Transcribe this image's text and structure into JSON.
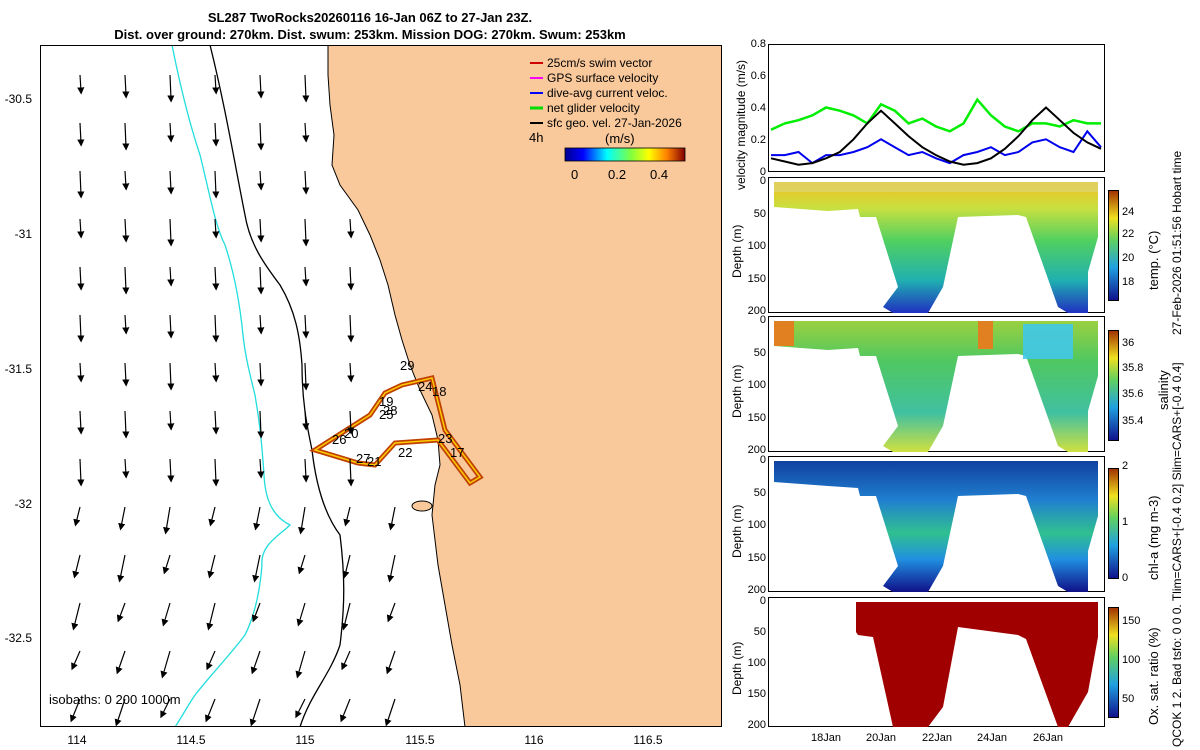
{
  "title_line1": "SL287 TwoRocks20260116 16-Jan 06Z to 27-Jan 23Z.",
  "title_line2": "Dist. over ground: 270km. Dist. swum: 253km. Mission DOG: 270km. Swum: 253km",
  "side_note": "27-Feb-2026 01:51:56 Hobart time",
  "side_note2": "QCOK 1  2. Bad tsfo: 0  0  0. Tlim=CARS+[-0.4 0.2] Slim=CARS+[-0.4 0.4]",
  "map": {
    "yticks": [
      "-30.5",
      "-31",
      "-31.5",
      "-32",
      "-32.5"
    ],
    "xticks": [
      "114",
      "114.5",
      "115",
      "115.5",
      "116",
      "116.5"
    ],
    "isobath_label": "isobaths: 0   200  1000m",
    "legend": [
      {
        "label": "25cm/s swim vector",
        "color": "#d00000"
      },
      {
        "label": "GPS surface velocity",
        "color": "#ff00ff"
      },
      {
        "label": "dive-avg current veloc.",
        "color": "#0000ff"
      },
      {
        "label": "net glider velocity",
        "color": "#00dd00"
      },
      {
        "label": "sfc geo. vel. 27-Jan-2026",
        "color": "#000000"
      }
    ],
    "legend_4h": "4h",
    "colorbar_unit": "(m/s)",
    "colorbar_ticks": [
      "0",
      "0.2",
      "0.4"
    ],
    "day_labels": [
      "29",
      "24",
      "18",
      "19",
      "28",
      "25",
      "20",
      "26",
      "23",
      "22",
      "17",
      "27",
      "21"
    ],
    "colors": {
      "land": "#f9c89b",
      "isobath_200": "#000000",
      "isobath_1000": "#22dddd"
    }
  },
  "velocity": {
    "ylabel": "velocity magnitude (m/s)",
    "yticks": [
      "0.8",
      "0.6",
      "0.4",
      "0.2",
      "0"
    ]
  },
  "panels": [
    {
      "ylabel": "Depth (m)",
      "cblabel": "temp. (°C)",
      "cbticks": [
        "24",
        "22",
        "20",
        "18"
      ]
    },
    {
      "ylabel": "Depth (m)",
      "cblabel": "salinity",
      "cbticks": [
        "36",
        "35.8",
        "35.6",
        "35.4"
      ]
    },
    {
      "ylabel": "Depth (m)",
      "cblabel": "chl-a  (mg m-3)",
      "cbticks": [
        "2",
        "1",
        "0"
      ]
    },
    {
      "ylabel": "Depth (m)",
      "cblabel": "Ox. sat. ratio (%)",
      "cbticks": [
        "150",
        "100",
        "50"
      ]
    }
  ],
  "depth_ticks": [
    "0",
    "50",
    "100",
    "150",
    "200"
  ],
  "date_ticks": [
    "18Jan",
    "20Jan",
    "22Jan",
    "24Jan",
    "26Jan"
  ],
  "chart_data": {
    "type": "line",
    "title": "velocity magnitude (m/s)",
    "ylim": [
      0,
      0.8
    ],
    "xlabel": "",
    "ylabel": "velocity magnitude (m/s)",
    "series": [
      {
        "name": "net glider velocity",
        "color": "#00ee00",
        "values": [
          0.26,
          0.3,
          0.32,
          0.35,
          0.4,
          0.38,
          0.35,
          0.3,
          0.42,
          0.38,
          0.3,
          0.33,
          0.28,
          0.25,
          0.3,
          0.45,
          0.35,
          0.28,
          0.25,
          0.3,
          0.3,
          0.28,
          0.32,
          0.3,
          0.3
        ]
      },
      {
        "name": "dive-avg current veloc.",
        "color": "#0000ee",
        "values": [
          0.1,
          0.1,
          0.12,
          0.05,
          0.1,
          0.1,
          0.12,
          0.15,
          0.2,
          0.15,
          0.1,
          0.12,
          0.08,
          0.05,
          0.1,
          0.12,
          0.15,
          0.1,
          0.12,
          0.18,
          0.2,
          0.15,
          0.12,
          0.25,
          0.15
        ]
      },
      {
        "name": "sfc geo. vel.",
        "color": "#000000",
        "values": [
          0.08,
          0.06,
          0.04,
          0.05,
          0.08,
          0.12,
          0.2,
          0.3,
          0.38,
          0.3,
          0.22,
          0.15,
          0.1,
          0.06,
          0.04,
          0.05,
          0.08,
          0.14,
          0.22,
          0.32,
          0.4,
          0.32,
          0.24,
          0.18,
          0.14
        ]
      }
    ],
    "x": [
      16.5,
      17,
      17.5,
      18,
      18.5,
      19,
      19.5,
      20,
      20.5,
      21,
      21.5,
      22,
      22.5,
      23,
      23.5,
      24,
      24.5,
      25,
      25.5,
      26,
      26.5,
      27,
      27.5,
      28,
      28.5
    ]
  }
}
